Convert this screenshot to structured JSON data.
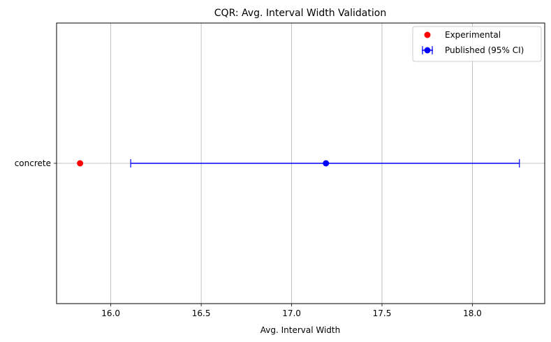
{
  "chart_data": {
    "type": "scatter",
    "title": "CQR: Avg. Interval Width Validation",
    "xlabel": "Avg. Interval Width",
    "ylabel": "",
    "xlim": [
      15.7,
      18.4
    ],
    "x_ticks": [
      "16.0",
      "16.5",
      "17.0",
      "17.5",
      "18.0"
    ],
    "x_tick_values": [
      16.0,
      16.5,
      17.0,
      17.5,
      18.0
    ],
    "categories": [
      "concrete"
    ],
    "grid": true,
    "legend_position": "top-right",
    "series": [
      {
        "name": "Experimental",
        "color": "#ff0000",
        "marker": "circle",
        "points": [
          {
            "category": "concrete",
            "x": 15.83
          }
        ]
      },
      {
        "name": "Published (95% CI)",
        "color": "#0000ff",
        "marker": "circle",
        "error_bar": true,
        "points": [
          {
            "category": "concrete",
            "x": 17.19,
            "ci_low": 16.11,
            "ci_high": 18.26
          }
        ]
      }
    ]
  }
}
